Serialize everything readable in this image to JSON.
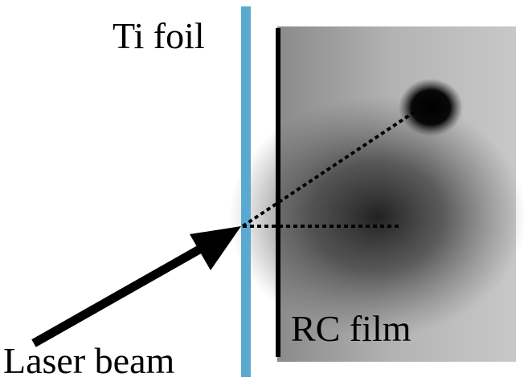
{
  "labels": {
    "foil": "Ti foil",
    "film": "RC film",
    "beam": "Laser beam"
  }
}
